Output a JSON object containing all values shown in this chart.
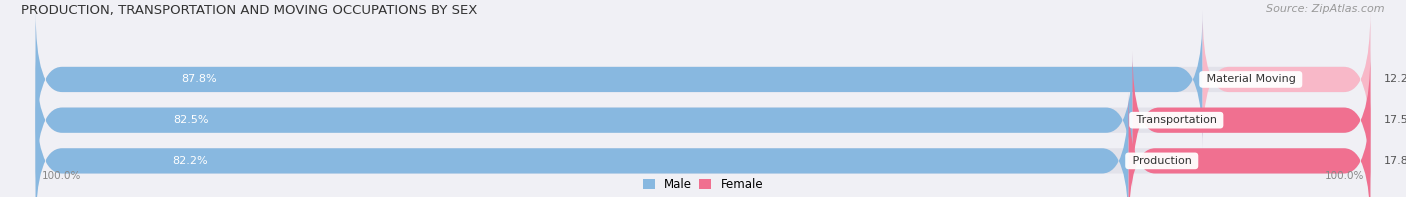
{
  "title": "PRODUCTION, TRANSPORTATION AND MOVING OCCUPATIONS BY SEX",
  "source": "Source: ZipAtlas.com",
  "categories": [
    "Material Moving",
    "Transportation",
    "Production"
  ],
  "male_values": [
    87.8,
    82.5,
    82.2
  ],
  "female_values": [
    12.2,
    17.5,
    17.8
  ],
  "male_color": "#88b8e0",
  "female_color": "#f07090",
  "female_light_color": "#f8b8c8",
  "bar_bg_color": "#e2e2ea",
  "label_color_male": "#ffffff",
  "value_label_color": "#555555",
  "cat_label_color": "#333333",
  "title_fontsize": 9.5,
  "source_fontsize": 8,
  "bar_label_fontsize": 8,
  "cat_label_fontsize": 8,
  "axis_label": "100.0%",
  "bar_height": 0.62,
  "bg_color": "#f0f0f5",
  "figsize": [
    14.06,
    1.97
  ],
  "dpi": 100
}
